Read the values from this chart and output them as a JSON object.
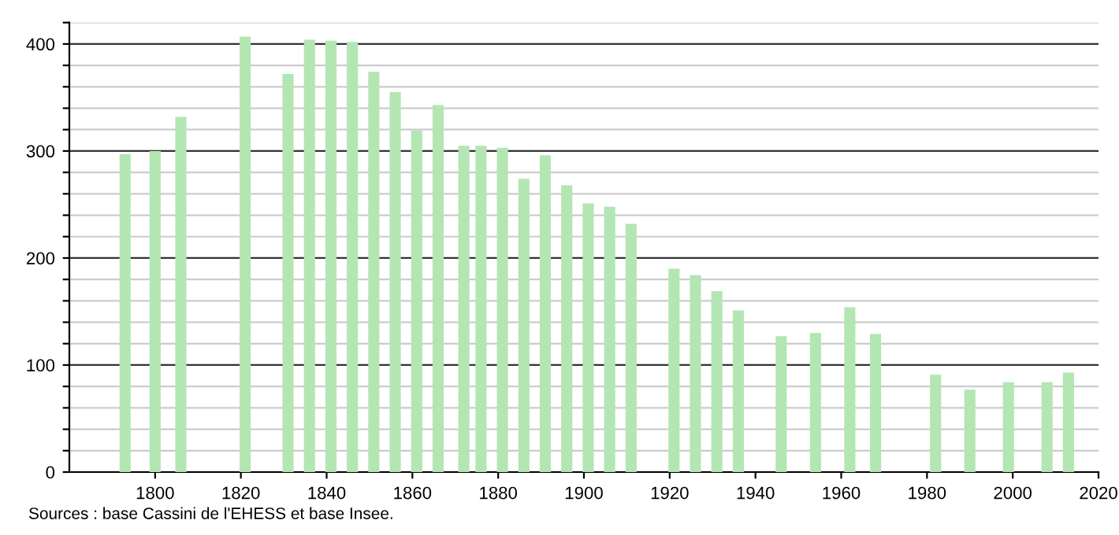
{
  "chart_data": {
    "type": "bar",
    "x": [
      1793,
      1800,
      1806,
      1821,
      1831,
      1836,
      1841,
      1846,
      1851,
      1856,
      1861,
      1866,
      1872,
      1876,
      1881,
      1886,
      1891,
      1896,
      1901,
      1906,
      1911,
      1921,
      1926,
      1931,
      1936,
      1946,
      1954,
      1962,
      1968,
      1982,
      1990,
      1999,
      2008,
      2013
    ],
    "values": [
      297,
      300,
      332,
      407,
      372,
      404,
      403,
      402,
      374,
      355,
      319,
      343,
      305,
      305,
      303,
      274,
      296,
      268,
      251,
      248,
      232,
      190,
      184,
      169,
      151,
      127,
      130,
      154,
      129,
      91,
      77,
      84,
      84,
      93
    ],
    "color": "#b3e6b3",
    "xlim": [
      1780,
      2020
    ],
    "xticks": [
      1800,
      1820,
      1840,
      1860,
      1880,
      1900,
      1920,
      1940,
      1960,
      1980,
      2000,
      2020
    ],
    "ylim": [
      0,
      420
    ],
    "yticks": [
      0,
      {
        "value": 20,
        "label": null
      },
      {
        "value": 40,
        "label": null
      },
      {
        "value": 60,
        "label": null
      },
      {
        "value": 80,
        "label": null
      },
      100,
      {
        "value": 120,
        "label": null
      },
      {
        "value": 140,
        "label": null
      },
      {
        "value": 160,
        "label": null
      },
      {
        "value": 180,
        "label": null
      },
      200,
      {
        "value": 220,
        "label": null
      },
      {
        "value": 240,
        "label": null
      },
      {
        "value": 260,
        "label": null
      },
      {
        "value": 280,
        "label": null
      },
      300,
      {
        "value": 320,
        "label": null
      },
      {
        "value": 340,
        "label": null
      },
      {
        "value": 360,
        "label": null
      },
      {
        "value": 380,
        "label": null
      },
      400,
      {
        "value": 420,
        "label": null
      }
    ],
    "grid": "y",
    "annotations": [
      "Sources : base Cassini de l'EHESS et base Insee."
    ]
  }
}
